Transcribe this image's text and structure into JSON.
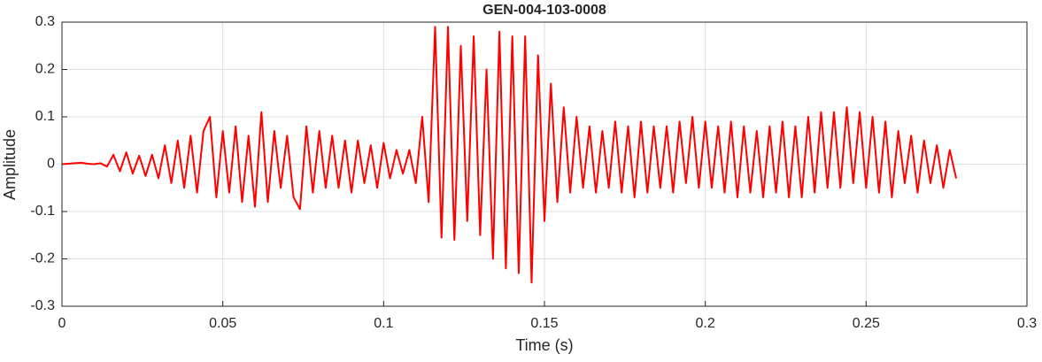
{
  "chart_data": {
    "type": "line",
    "title": "GEN-004-103-0008",
    "x_label": "Time (s)",
    "y_label": "Amplitude",
    "xlim": [
      0,
      0.3
    ],
    "xticks": [
      0,
      0.05,
      0.1,
      0.15,
      0.2,
      0.25,
      0.3
    ],
    "ylim": [
      -0.3,
      0.3
    ],
    "yticks": [
      -0.3,
      -0.2,
      -0.1,
      0,
      0.1,
      0.2,
      0.3
    ],
    "grid": true,
    "x": [
      0,
      0.002,
      0.004,
      0.006,
      0.008,
      0.01,
      0.012,
      0.014,
      0.016,
      0.018,
      0.02,
      0.022,
      0.024,
      0.026,
      0.028,
      0.03,
      0.032,
      0.034,
      0.036,
      0.038,
      0.04,
      0.042,
      0.044,
      0.046,
      0.048,
      0.05,
      0.052,
      0.054,
      0.056,
      0.058,
      0.06,
      0.062,
      0.064,
      0.066,
      0.068,
      0.07,
      0.072,
      0.074,
      0.076,
      0.078,
      0.08,
      0.082,
      0.084,
      0.086,
      0.088,
      0.09,
      0.092,
      0.094,
      0.096,
      0.098,
      0.1,
      0.102,
      0.104,
      0.106,
      0.108,
      0.11,
      0.112,
      0.114,
      0.116,
      0.118,
      0.12,
      0.122,
      0.124,
      0.126,
      0.128,
      0.13,
      0.132,
      0.134,
      0.136,
      0.138,
      0.14,
      0.142,
      0.144,
      0.146,
      0.148,
      0.15,
      0.152,
      0.154,
      0.156,
      0.158,
      0.16,
      0.162,
      0.164,
      0.166,
      0.168,
      0.17,
      0.172,
      0.174,
      0.176,
      0.178,
      0.18,
      0.182,
      0.184,
      0.186,
      0.188,
      0.19,
      0.192,
      0.194,
      0.196,
      0.198,
      0.2,
      0.202,
      0.204,
      0.206,
      0.208,
      0.21,
      0.212,
      0.214,
      0.216,
      0.218,
      0.22,
      0.222,
      0.224,
      0.226,
      0.228,
      0.23,
      0.232,
      0.234,
      0.236,
      0.238,
      0.24,
      0.242,
      0.244,
      0.246,
      0.248,
      0.25,
      0.252,
      0.254,
      0.256,
      0.258,
      0.26,
      0.262,
      0.264,
      0.266,
      0.268,
      0.27,
      0.272,
      0.274,
      0.276,
      0.278
    ],
    "series": [
      {
        "color": "#ff0000",
        "values": [
          0,
          0.001,
          0.002,
          0.003,
          0.001,
          0,
          0.002,
          -0.005,
          0.02,
          -0.015,
          0.025,
          -0.02,
          0.018,
          -0.025,
          0.02,
          -0.03,
          0.04,
          -0.04,
          0.05,
          -0.05,
          0.06,
          -0.06,
          0.07,
          0.1,
          -0.07,
          0.07,
          -0.06,
          0.08,
          -0.08,
          0.06,
          -0.09,
          0.11,
          -0.08,
          0.07,
          -0.05,
          0.06,
          -0.07,
          -0.095,
          0.08,
          -0.06,
          0.07,
          -0.05,
          0.06,
          -0.05,
          0.05,
          -0.06,
          0.05,
          -0.04,
          0.04,
          -0.05,
          0.045,
          -0.03,
          0.03,
          -0.02,
          0.03,
          -0.04,
          0.1,
          -0.08,
          0.29,
          -0.155,
          0.29,
          -0.16,
          0.25,
          -0.12,
          0.27,
          -0.15,
          0.2,
          -0.2,
          0.28,
          -0.22,
          0.27,
          -0.23,
          0.27,
          -0.25,
          0.23,
          -0.12,
          0.17,
          -0.08,
          0.12,
          -0.06,
          0.1,
          -0.05,
          0.08,
          -0.06,
          0.07,
          -0.05,
          0.09,
          -0.06,
          0.08,
          -0.07,
          0.09,
          -0.06,
          0.08,
          -0.05,
          0.08,
          -0.06,
          0.09,
          -0.04,
          0.1,
          -0.05,
          0.09,
          -0.05,
          0.08,
          -0.06,
          0.09,
          -0.07,
          0.08,
          -0.06,
          0.07,
          -0.07,
          0.08,
          -0.06,
          0.09,
          -0.07,
          0.08,
          -0.07,
          0.1,
          -0.06,
          0.11,
          -0.05,
          0.11,
          -0.05,
          0.12,
          -0.04,
          0.11,
          -0.05,
          0.1,
          -0.06,
          0.09,
          -0.07,
          0.07,
          -0.04,
          0.06,
          -0.06,
          0.05,
          -0.04,
          0.04,
          -0.05,
          0.03,
          -0.03
        ]
      }
    ]
  }
}
